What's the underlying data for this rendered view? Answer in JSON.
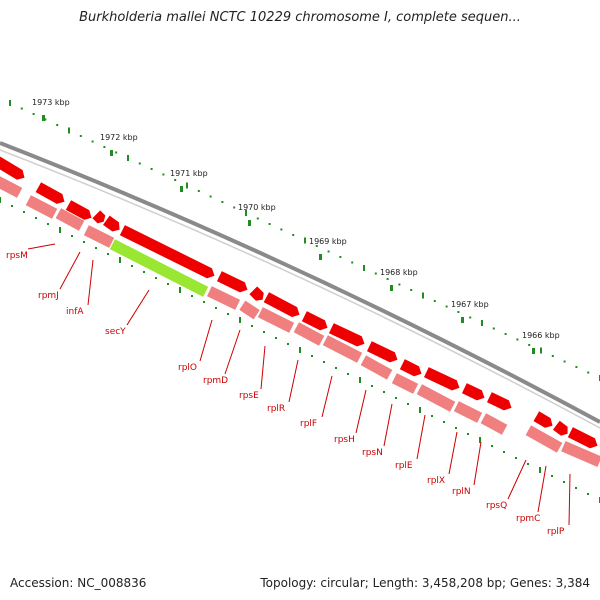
{
  "title": "Burkholderia mallei NCTC 10229 chromosome I, complete sequen...",
  "footer": {
    "accession": "Accession: NC_008836",
    "summary": "Topology: circular; Length: 3,458,208 bp; Genes: 3,384"
  },
  "scale": {
    "ticks": [
      {
        "label": "1973 kbp"
      },
      {
        "label": "1972 kbp"
      },
      {
        "label": "1971 kbp"
      },
      {
        "label": "1970 kbp"
      },
      {
        "label": "1969 kbp"
      },
      {
        "label": "1968 kbp"
      },
      {
        "label": "1967 kbp"
      },
      {
        "label": "1966 kbp"
      }
    ]
  },
  "genes": [
    {
      "name": "rpsM"
    },
    {
      "name": "rpmJ"
    },
    {
      "name": "infA"
    },
    {
      "name": "secY"
    },
    {
      "name": "rplO"
    },
    {
      "name": "rpmD"
    },
    {
      "name": "rpsE"
    },
    {
      "name": "rplR"
    },
    {
      "name": "rplF"
    },
    {
      "name": "rpsH"
    },
    {
      "name": "rpsN"
    },
    {
      "name": "rplE"
    },
    {
      "name": "rplX"
    },
    {
      "name": "rplN"
    },
    {
      "name": "rpsQ"
    },
    {
      "name": "rpmC"
    },
    {
      "name": "rplP"
    }
  ],
  "colors": {
    "backbone": "#8a8a8a",
    "cds": "#ee0000",
    "cds_light": "#f08080",
    "highlight": "#99e633",
    "label": "#cc0000",
    "tick": "#228b22"
  }
}
